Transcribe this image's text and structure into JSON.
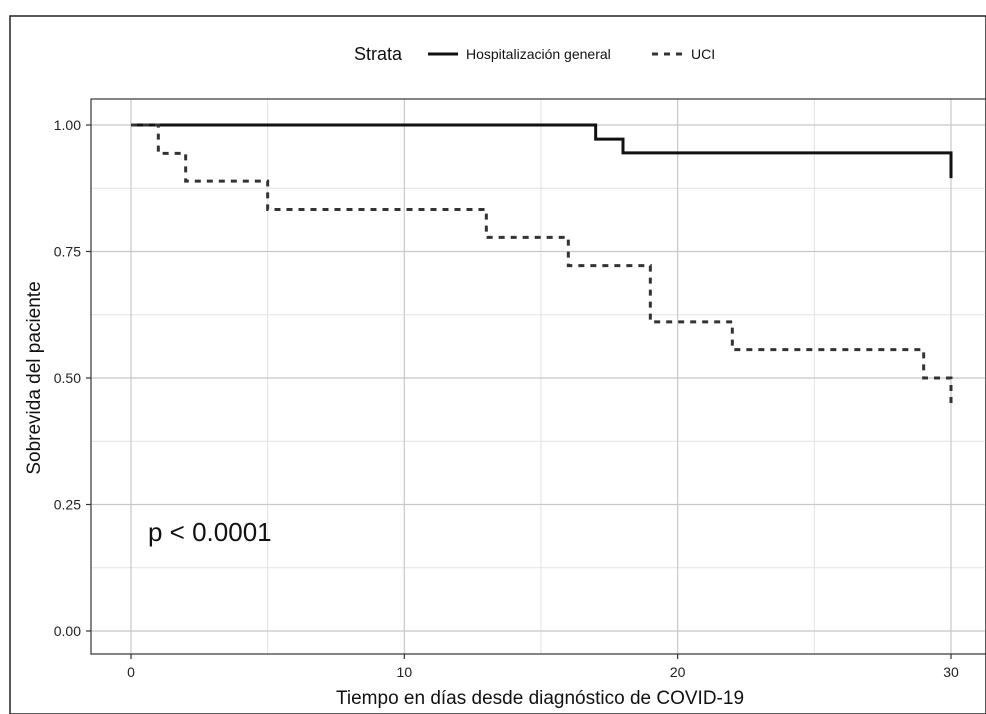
{
  "chart_data": {
    "type": "line",
    "subtype": "kaplan-meier-step",
    "xlabel": "Tiempo en días desde diagnóstico de COVID-19",
    "ylabel": "Sobrevida del paciente",
    "xlim": [
      0,
      30
    ],
    "ylim": [
      0,
      1
    ],
    "xticks": [
      0,
      10,
      20,
      30
    ],
    "xtick_labels": [
      "0",
      "10",
      "20",
      "30"
    ],
    "yticks": [
      0,
      0.25,
      0.5,
      0.75,
      1.0
    ],
    "ytick_labels": [
      "0.00",
      "0.25",
      "0.50",
      "0.75",
      "1.00"
    ],
    "grid": true,
    "legend": {
      "title": "Strata",
      "position": "top"
    },
    "annotation": "p < 0.0001",
    "series": [
      {
        "name": "Hospitalización general",
        "line_style": "solid",
        "color": "#111111",
        "x": [
          0,
          17,
          18,
          30,
          30
        ],
        "y": [
          1.0,
          0.972,
          0.945,
          0.945,
          0.895
        ]
      },
      {
        "name": "UCI",
        "line_style": "dashed",
        "color": "#333333",
        "x": [
          0,
          1,
          1.5,
          2,
          5,
          13,
          16,
          19,
          22,
          29,
          30,
          30
        ],
        "y": [
          1.0,
          0.944,
          0.944,
          0.889,
          0.833,
          0.778,
          0.722,
          0.611,
          0.556,
          0.5,
          0.5,
          0.445
        ]
      }
    ]
  }
}
